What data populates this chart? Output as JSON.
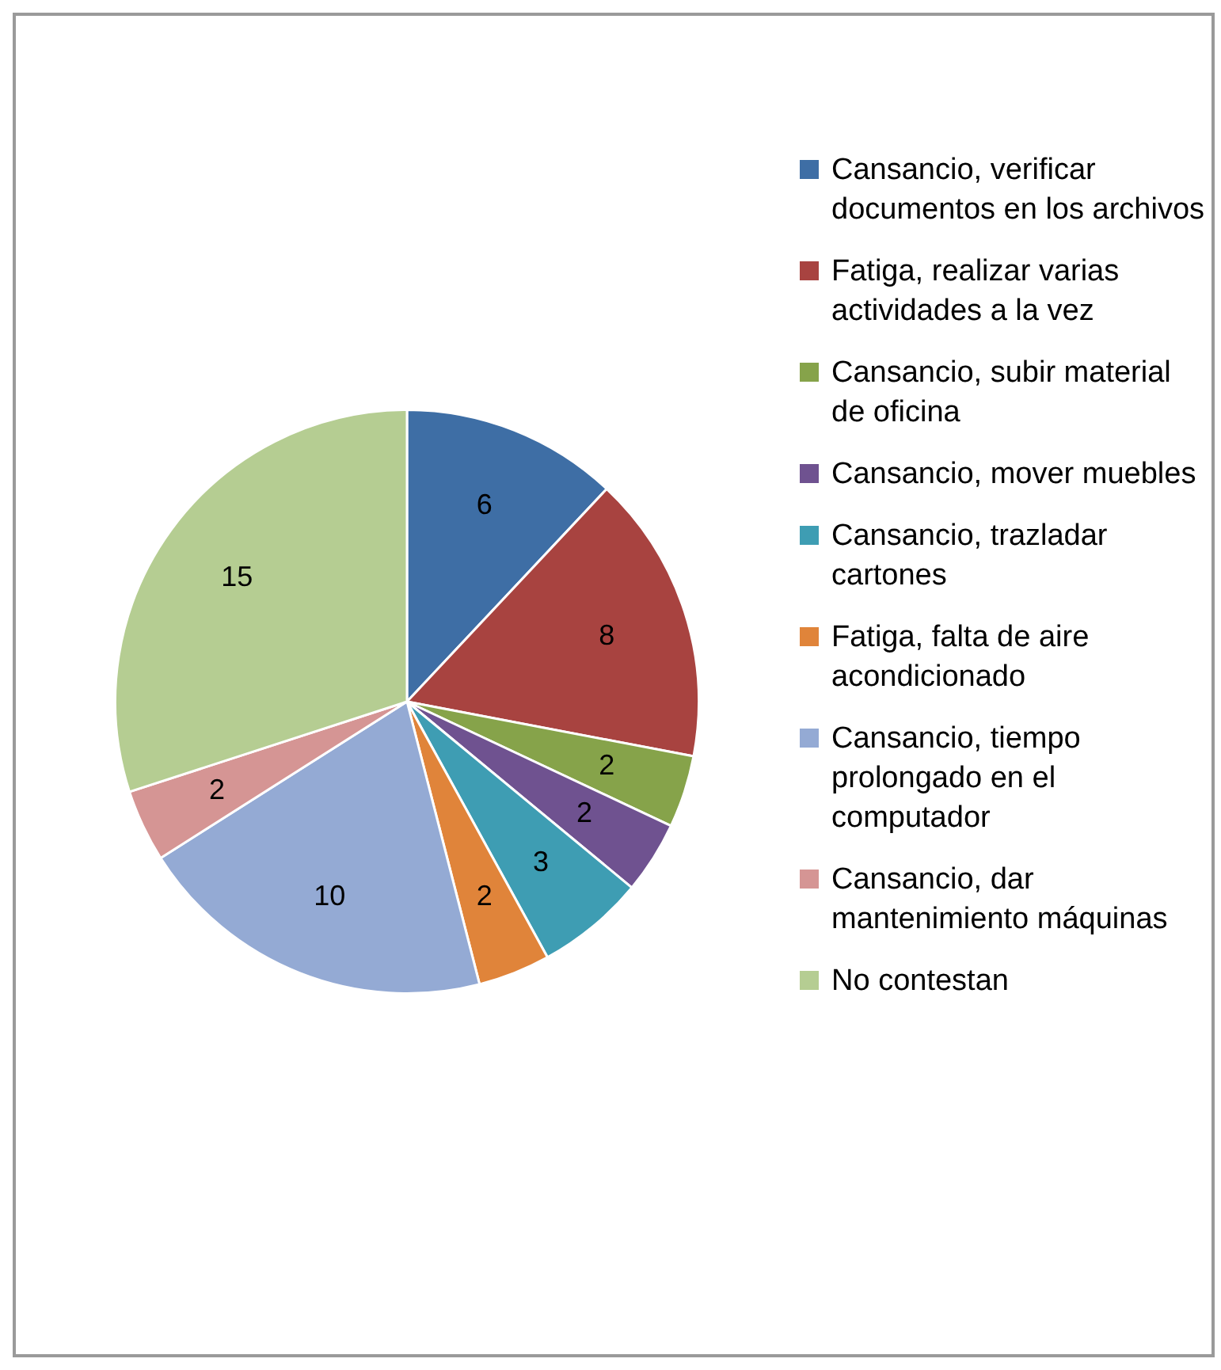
{
  "chart_data": {
    "type": "pie",
    "categories": [
      "Cansancio, verificar documentos en los archivos",
      "Fatiga, realizar varias actividades a la vez",
      "Cansancio, subir material de oficina",
      "Cansancio, mover muebles",
      "Cansancio,  trazladar cartones",
      "Fatiga, falta de aire acondicionado",
      "Cansancio, tiempo prolongado en el computador",
      "Cansancio, dar mantenimiento máquinas",
      "No contestan"
    ],
    "values": [
      6,
      8,
      2,
      2,
      3,
      2,
      10,
      2,
      15
    ],
    "colors": [
      "#3e6ea5",
      "#a84340",
      "#86a34a",
      "#6f5290",
      "#3e9db3",
      "#e0843a",
      "#94aad4",
      "#d59594",
      "#b5cd92"
    ],
    "data_labels": true,
    "legend": "right"
  }
}
